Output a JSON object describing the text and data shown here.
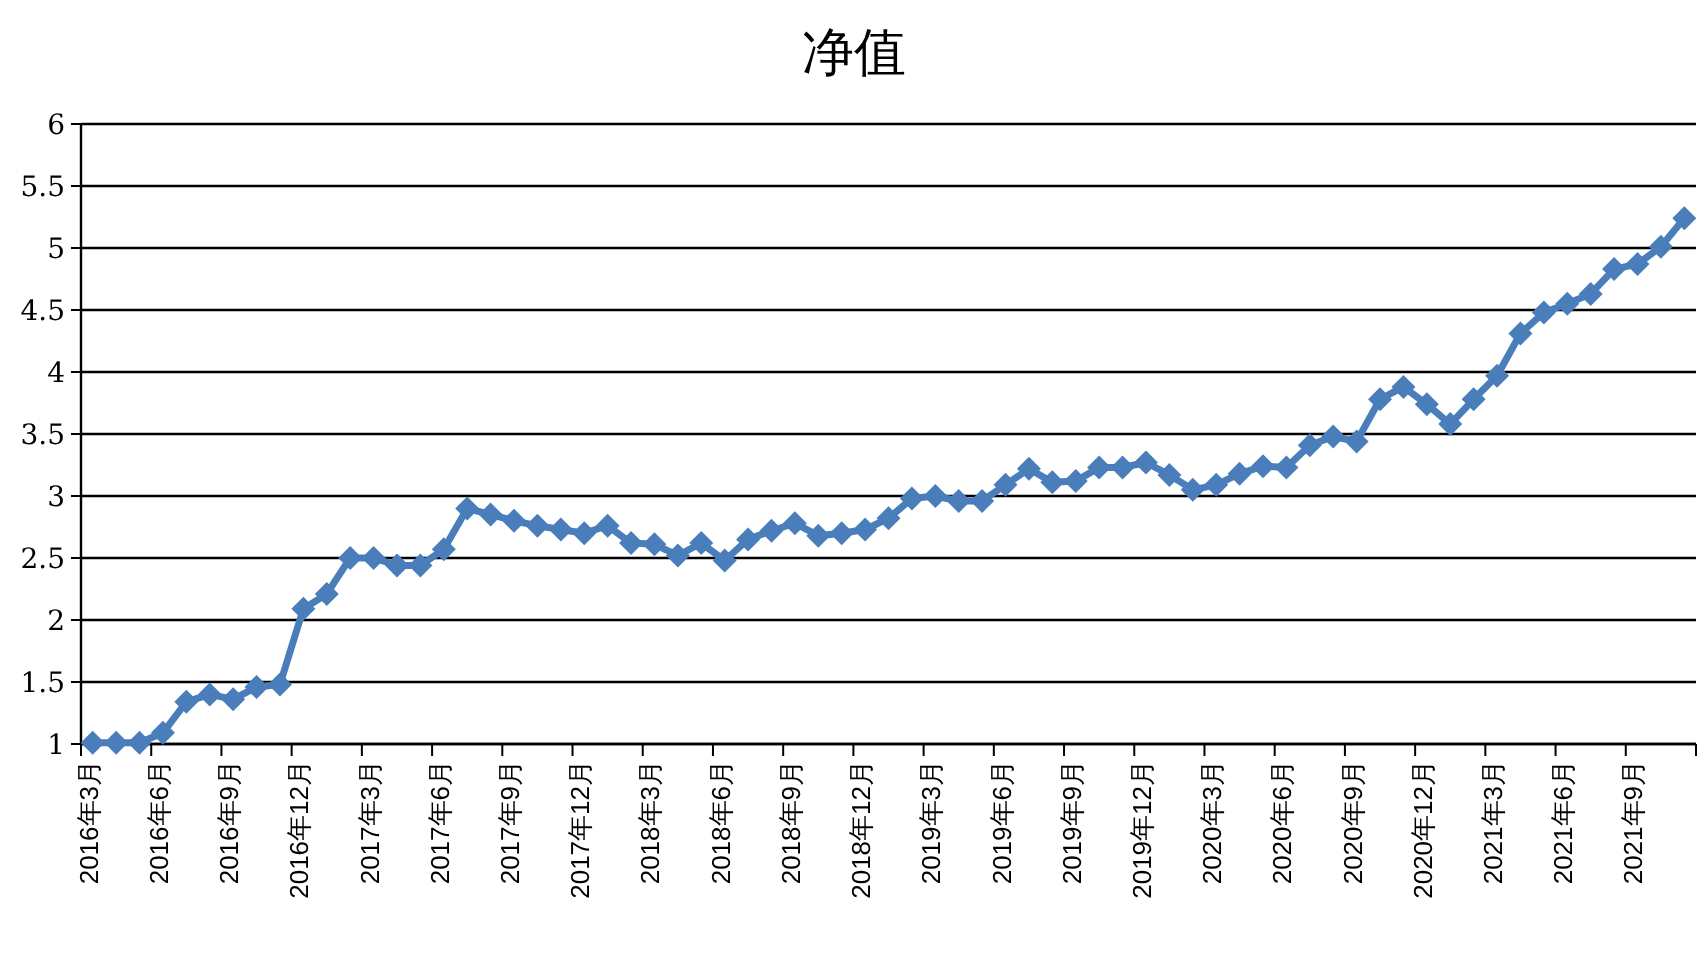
{
  "chart_data": {
    "type": "line",
    "title": "净值",
    "categories": [
      "2016年3月",
      null,
      null,
      "2016年6月",
      null,
      null,
      "2016年9月",
      null,
      null,
      "2016年12月",
      null,
      null,
      "2017年3月",
      null,
      null,
      "2017年6月",
      null,
      null,
      "2017年9月",
      null,
      null,
      "2017年12月",
      null,
      null,
      "2018年3月",
      null,
      null,
      "2018年6月",
      null,
      null,
      "2018年9月",
      null,
      null,
      "2018年12月",
      null,
      null,
      "2019年3月",
      null,
      null,
      "2019年6月",
      null,
      null,
      "2019年9月",
      null,
      null,
      "2019年12月",
      null,
      null,
      "2020年3月",
      null,
      null,
      "2020年6月",
      null,
      null,
      "2020年9月",
      null,
      null,
      "2020年12月",
      null,
      null,
      "2021年3月",
      null,
      null,
      "2021年6月",
      null,
      null,
      "2021年9月",
      null,
      null
    ],
    "series": [
      {
        "color": "#4a7ebb",
        "values": [
          1.01,
          1.01,
          1.01,
          1.09,
          1.34,
          1.4,
          1.36,
          1.46,
          1.48,
          2.09,
          2.21,
          2.5,
          2.5,
          2.44,
          2.44,
          2.57,
          2.9,
          2.85,
          2.8,
          2.76,
          2.73,
          2.7,
          2.76,
          2.62,
          2.61,
          2.52,
          2.62,
          2.48,
          2.65,
          2.72,
          2.78,
          2.68,
          2.7,
          2.73,
          2.82,
          2.98,
          3.0,
          2.96,
          2.96,
          3.09,
          3.22,
          3.11,
          3.12,
          3.23,
          3.23,
          3.27,
          3.17,
          3.05,
          3.09,
          3.18,
          3.24,
          3.23,
          3.41,
          3.48,
          3.44,
          3.78,
          3.88,
          3.74,
          3.58,
          3.78,
          3.97,
          4.31,
          4.48,
          4.55,
          4.63,
          4.83,
          4.87,
          5.01,
          5.24
        ]
      }
    ],
    "ylim": [
      1,
      6
    ],
    "yticks": [
      1,
      1.5,
      2,
      2.5,
      3,
      3.5,
      4,
      4.5,
      5,
      5.5,
      6
    ],
    "grid": "y",
    "marker": "diamond",
    "line_style": "solid"
  }
}
